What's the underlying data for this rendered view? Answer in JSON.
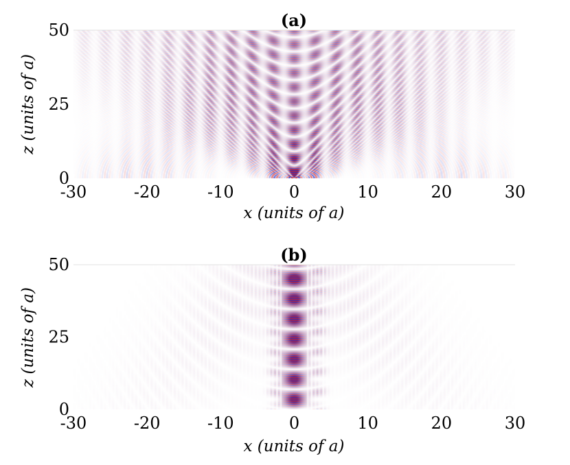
{
  "chart_data": [
    {
      "type": "heatmap",
      "title": "(a)",
      "xlabel": "x (units of a)",
      "ylabel": "z (units of a)",
      "xlim": [
        -30,
        30
      ],
      "ylim": [
        0,
        50
      ],
      "xticks": [
        "-30",
        "-20",
        "-10",
        "0",
        "10",
        "20",
        "30"
      ],
      "yticks": [
        "0",
        "25",
        "50"
      ],
      "colormap": "blue-white-red",
      "colors": {
        "positive": "#d62020",
        "negative": "#2030c8",
        "zero": "#ffffff"
      },
      "pattern": "diffracting",
      "grid": false
    },
    {
      "type": "heatmap",
      "title": "(b)",
      "xlabel": "x (units of a)",
      "ylabel": "z (units of a)",
      "xlim": [
        -30,
        30
      ],
      "ylim": [
        0,
        50
      ],
      "xticks": [
        "-30",
        "-20",
        "-10",
        "0",
        "10",
        "20",
        "30"
      ],
      "yticks": [
        "0",
        "25",
        "50"
      ],
      "colormap": "blue-white-red",
      "colors": {
        "positive": "#d62020",
        "negative": "#2030c8",
        "zero": "#ffffff"
      },
      "pattern": "localized",
      "grid": false
    }
  ]
}
